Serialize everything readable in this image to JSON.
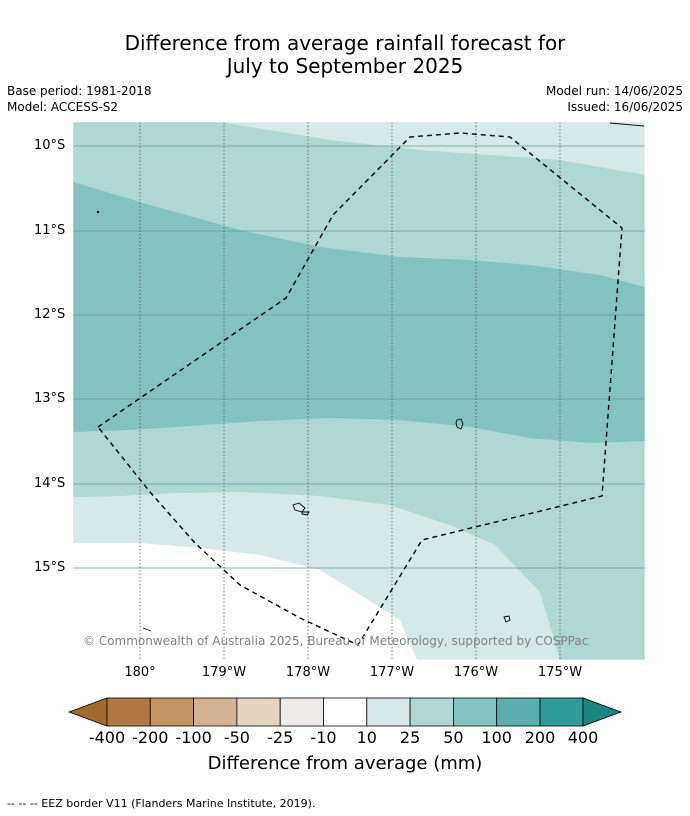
{
  "title_line1": "Difference from average rainfall forecast for",
  "title_line2": "July to September 2025",
  "meta": {
    "base_period": "Base period: 1981-2018",
    "model": "Model: ACCESS-S2",
    "model_run": "Model run: 14/06/2025",
    "issued": "Issued: 16/06/2025"
  },
  "map": {
    "lat_labels": [
      "10°S",
      "11°S",
      "12°S",
      "13°S",
      "14°S",
      "15°S"
    ],
    "lon_labels": [
      "180°",
      "179°W",
      "178°W",
      "177°W",
      "176°W",
      "175°W"
    ],
    "copyright": "© Commonwealth of Australia 2025, Bureau of Meteorology, supported by COSPPac",
    "colors": {
      "band_10_25": "#d5e9e8",
      "band_25_50": "#aed7d6",
      "band_50_100": "#84c2c1"
    }
  },
  "colorbar": {
    "title": "Difference from average (mm)",
    "labels": [
      "-400",
      "-200",
      "-100",
      "-50",
      "-25",
      "-10",
      "10",
      "25",
      "50",
      "100",
      "200",
      "400"
    ],
    "colors": [
      "#a36b2b",
      "#b07740",
      "#c39564",
      "#d4b394",
      "#e6d2c0",
      "#efebe8",
      "#ffffff",
      "#d5e9e8",
      "#aed7d6",
      "#84c2c1",
      "#5aafae",
      "#2f9c98",
      "#1d8480"
    ]
  },
  "footnote": "--  --  -- EEZ border V11 (Flanders Marine Institute, 2019)."
}
